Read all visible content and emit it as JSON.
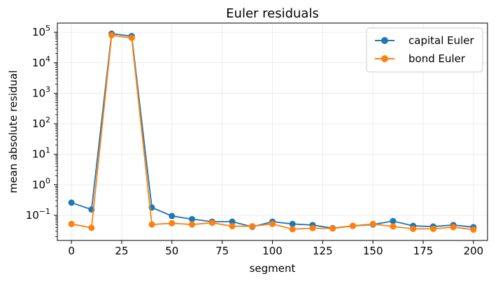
{
  "chart_data": {
    "type": "line",
    "title": "Euler residuals",
    "xlabel": "segment",
    "ylabel": "mean absolute residual",
    "yscale": "log",
    "grid": true,
    "legend_position": "top-right",
    "xlim": [
      -7,
      207
    ],
    "ylim": [
      0.015,
      200000
    ],
    "x_ticks": [
      0,
      25,
      50,
      75,
      100,
      125,
      150,
      175,
      200
    ],
    "y_ticks": [
      {
        "value": 0.1,
        "base": "10",
        "exp": "−1"
      },
      {
        "value": 1,
        "base": "10",
        "exp": "0"
      },
      {
        "value": 10,
        "base": "10",
        "exp": "1"
      },
      {
        "value": 100,
        "base": "10",
        "exp": "2"
      },
      {
        "value": 1000,
        "base": "10",
        "exp": "3"
      },
      {
        "value": 10000,
        "base": "10",
        "exp": "4"
      },
      {
        "value": 100000,
        "base": "10",
        "exp": "5"
      }
    ],
    "x": [
      0,
      10,
      20,
      30,
      40,
      50,
      60,
      70,
      80,
      90,
      100,
      110,
      120,
      130,
      140,
      150,
      160,
      170,
      180,
      190,
      200
    ],
    "series": [
      {
        "name": "capital Euler",
        "color": "#1f77b4",
        "values": [
          0.26,
          0.155,
          90000,
          75000,
          0.18,
          0.095,
          0.075,
          0.062,
          0.062,
          0.042,
          0.062,
          0.052,
          0.048,
          0.038,
          0.045,
          0.05,
          0.065,
          0.045,
          0.043,
          0.048,
          0.041
        ]
      },
      {
        "name": "bond Euler",
        "color": "#ff7f0e",
        "values": [
          0.052,
          0.039,
          80000,
          65000,
          0.05,
          0.055,
          0.05,
          0.057,
          0.044,
          0.044,
          0.052,
          0.035,
          0.038,
          0.037,
          0.045,
          0.052,
          0.043,
          0.036,
          0.036,
          0.041,
          0.034
        ]
      }
    ]
  }
}
